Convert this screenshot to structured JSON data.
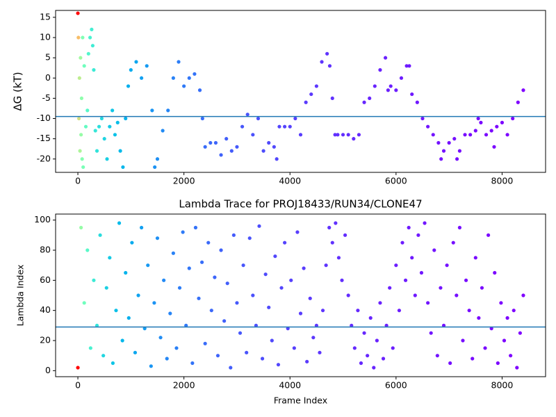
{
  "chart_data": [
    {
      "type": "scatter",
      "ylabel": "ΔG (kT)",
      "colormap": "rainbow_r",
      "color_norm": "log",
      "hline": -9.5,
      "hline_color": "#1f77b4",
      "xlim": [
        -420,
        8820
      ],
      "ylim": [
        -23.3,
        16.7
      ],
      "xticks": [
        0,
        2000,
        4000,
        6000,
        8000
      ],
      "yticks": [
        -20,
        -15,
        -10,
        -5,
        0,
        5,
        10,
        15
      ],
      "x": [
        0,
        10,
        20,
        30,
        40,
        50,
        60,
        70,
        80,
        90,
        100,
        120,
        150,
        180,
        200,
        230,
        260,
        280,
        300,
        330,
        360,
        400,
        450,
        500,
        550,
        600,
        650,
        700,
        750,
        800,
        850,
        900,
        950,
        1000,
        1100,
        1200,
        1300,
        1400,
        1450,
        1500,
        1600,
        1700,
        1800,
        1900,
        2000,
        2100,
        2200,
        2300,
        2350,
        2400,
        2500,
        2600,
        2700,
        2800,
        2900,
        3000,
        3100,
        3200,
        3300,
        3400,
        3500,
        3600,
        3700,
        3750,
        3800,
        3900,
        4000,
        4100,
        4200,
        4300,
        4400,
        4500,
        4600,
        4700,
        4750,
        4800,
        4850,
        4900,
        5000,
        5100,
        5200,
        5300,
        5400,
        5500,
        5600,
        5700,
        5800,
        5850,
        5900,
        6000,
        6100,
        6200,
        6250,
        6300,
        6400,
        6500,
        6600,
        6700,
        6800,
        6850,
        6900,
        7000,
        7100,
        7150,
        7200,
        7300,
        7400,
        7500,
        7550,
        7600,
        7700,
        7800,
        7850,
        7900,
        8000,
        8100,
        8200,
        8300,
        8400
      ],
      "values": [
        16,
        10,
        -10,
        0,
        -18,
        5,
        -14,
        -5,
        -20,
        10,
        -22,
        3,
        -12,
        -8,
        6,
        10,
        12,
        8,
        2,
        -13,
        -18,
        -12,
        -10,
        -15,
        -20,
        -12,
        -8,
        -14,
        -11,
        -18,
        -22,
        -10,
        -2,
        2,
        4,
        0,
        3,
        -8,
        -22,
        -20,
        -13,
        -8,
        0,
        4,
        -2,
        0,
        1,
        -3,
        -10,
        -17,
        -16,
        -16,
        -19,
        -15,
        -18,
        -17,
        -12,
        -9,
        -14,
        -10,
        -18,
        -16,
        -17,
        -20,
        -12,
        -12,
        -12,
        -10,
        -14,
        -6,
        -4,
        -2,
        4,
        6,
        3,
        -5,
        -14,
        -14,
        -14,
        -14,
        -15,
        -14,
        -6,
        -5,
        -2,
        2,
        5,
        -3,
        -2,
        -3,
        0,
        3,
        3,
        -4,
        -6,
        -10,
        -12,
        -14,
        -16,
        -20,
        -18,
        -16,
        -15,
        -20,
        -18,
        -14,
        -14,
        -13,
        -10,
        -11,
        -14,
        -13,
        -17,
        -12,
        -11,
        -14,
        -10,
        -6,
        -3
      ]
    },
    {
      "type": "scatter",
      "title": "Lambda Trace for PROJ18433/RUN34/CLONE47",
      "xlabel": "Frame Index",
      "ylabel": "Lambda Index",
      "colormap": "rainbow_r",
      "color_norm": "log",
      "hline": 29,
      "hline_color": "#1f77b4",
      "xlim": [
        -420,
        8820
      ],
      "ylim": [
        -4,
        104
      ],
      "xticks": [
        0,
        2000,
        4000,
        6000,
        8000
      ],
      "yticks": [
        0,
        20,
        40,
        60,
        80,
        100
      ],
      "x": [
        0,
        60,
        120,
        180,
        240,
        300,
        360,
        420,
        480,
        540,
        600,
        660,
        720,
        780,
        840,
        900,
        960,
        1020,
        1080,
        1140,
        1200,
        1260,
        1320,
        1380,
        1440,
        1500,
        1560,
        1620,
        1680,
        1740,
        1800,
        1860,
        1920,
        1980,
        2040,
        2100,
        2160,
        2220,
        2280,
        2340,
        2400,
        2460,
        2520,
        2580,
        2640,
        2700,
        2760,
        2820,
        2880,
        2940,
        3000,
        3060,
        3120,
        3180,
        3240,
        3300,
        3360,
        3420,
        3480,
        3540,
        3600,
        3660,
        3720,
        3780,
        3840,
        3900,
        3960,
        4020,
        4080,
        4140,
        4200,
        4260,
        4320,
        4380,
        4440,
        4500,
        4560,
        4620,
        4680,
        4740,
        4800,
        4860,
        4920,
        4980,
        5040,
        5100,
        5160,
        5220,
        5280,
        5340,
        5400,
        5460,
        5520,
        5580,
        5640,
        5700,
        5760,
        5820,
        5880,
        5940,
        6000,
        6060,
        6120,
        6180,
        6240,
        6300,
        6360,
        6420,
        6480,
        6540,
        6600,
        6660,
        6720,
        6780,
        6840,
        6900,
        6960,
        7020,
        7080,
        7140,
        7200,
        7260,
        7320,
        7380,
        7440,
        7500,
        7560,
        7620,
        7680,
        7740,
        7800,
        7860,
        7920,
        7980,
        8040,
        8100,
        8160,
        8220,
        8280,
        8340,
        8400
      ],
      "values": [
        2,
        95,
        45,
        80,
        15,
        60,
        30,
        90,
        10,
        55,
        75,
        5,
        40,
        98,
        20,
        65,
        35,
        85,
        12,
        50,
        95,
        28,
        70,
        3,
        45,
        88,
        22,
        60,
        8,
        38,
        78,
        15,
        55,
        92,
        30,
        68,
        5,
        95,
        48,
        72,
        18,
        85,
        40,
        62,
        10,
        80,
        33,
        58,
        2,
        90,
        45,
        25,
        70,
        12,
        88,
        50,
        30,
        96,
        8,
        64,
        42,
        20,
        76,
        4,
        55,
        85,
        28,
        60,
        15,
        92,
        38,
        68,
        6,
        48,
        22,
        30,
        12,
        40,
        70,
        95,
        85,
        98,
        75,
        60,
        90,
        50,
        30,
        15,
        40,
        5,
        25,
        10,
        35,
        2,
        20,
        45,
        8,
        30,
        55,
        15,
        70,
        40,
        85,
        60,
        95,
        75,
        50,
        90,
        65,
        98,
        45,
        25,
        80,
        10,
        55,
        30,
        70,
        5,
        85,
        50,
        95,
        20,
        60,
        40,
        8,
        75,
        35,
        55,
        15,
        90,
        28,
        65,
        5,
        45,
        20,
        35,
        10,
        40,
        2,
        25,
        50
      ]
    }
  ]
}
